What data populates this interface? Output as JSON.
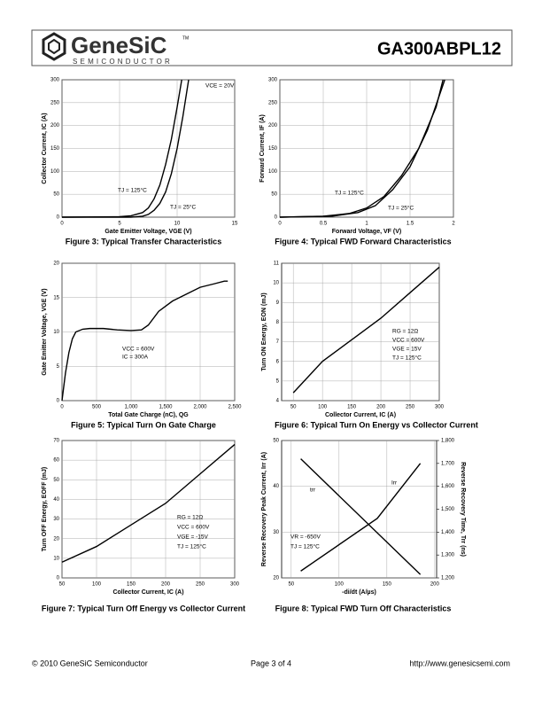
{
  "header": {
    "logo": "GeneSiC",
    "trademark": "TM",
    "tagline": "SEMICONDUCTOR",
    "part_number": "GA300ABPL12"
  },
  "chart_data": [
    {
      "type": "line",
      "caption": "Figure 3: Typical Transfer Characteristics",
      "x_label": "Gate Emitter Voltage, VGE (V)",
      "y_label": "Collector Current, IC (A)",
      "xlim": [
        0,
        15
      ],
      "xticks": [
        0,
        5,
        10,
        15
      ],
      "ylim": [
        0,
        300
      ],
      "yticks": [
        0,
        50,
        100,
        150,
        200,
        250,
        300
      ],
      "grid": true,
      "annotations": [
        "VCE = 20V",
        "TJ = 125°C",
        "TJ = 25°C"
      ],
      "series": [
        {
          "color": "#000000",
          "x": [
            0,
            5,
            6,
            7,
            7.5,
            8,
            8.5,
            9,
            9.5,
            10,
            10.4
          ],
          "values": [
            0,
            1,
            3,
            10,
            20,
            40,
            70,
            115,
            170,
            240,
            300
          ]
        },
        {
          "color": "#000000",
          "x": [
            0,
            6,
            7,
            7.5,
            8,
            8.5,
            9,
            9.5,
            10,
            10.5,
            11
          ],
          "values": [
            0,
            0,
            2,
            6,
            15,
            30,
            55,
            95,
            150,
            220,
            300
          ]
        }
      ]
    },
    {
      "type": "line",
      "caption": "Figure 4: Typical FWD Forward Characteristics",
      "x_label": "Forward Voltage, VF (V)",
      "y_label": "Forward Current, IF (A)",
      "xlim": [
        0,
        2
      ],
      "xticks": [
        0,
        0.5,
        1,
        1.5,
        2
      ],
      "ylim": [
        0,
        300
      ],
      "yticks": [
        0,
        50,
        100,
        150,
        200,
        250,
        300
      ],
      "grid": true,
      "annotations": [
        "TJ = 125°C",
        "TJ = 25°C"
      ],
      "series": [
        {
          "color": "#000000",
          "x": [
            0,
            0.5,
            0.8,
            1,
            1.2,
            1.4,
            1.6,
            1.8,
            1.88
          ],
          "values": [
            0,
            2,
            8,
            20,
            45,
            90,
            150,
            240,
            300
          ]
        },
        {
          "color": "#000000",
          "x": [
            0,
            0.6,
            0.9,
            1.1,
            1.3,
            1.5,
            1.7,
            1.9
          ],
          "values": [
            0,
            2,
            10,
            25,
            60,
            110,
            190,
            300
          ]
        }
      ]
    },
    {
      "type": "line",
      "caption": "Figure 5: Typical Turn On Gate Charge",
      "x_label": "Total Gate Charge (nC), QG",
      "y_label": "Gate Emitter Voltage, VGE (V)",
      "xlim": [
        0,
        2500
      ],
      "xticks": [
        0,
        500,
        {
          "value": 1000,
          "label": "1,000"
        },
        {
          "value": 1500,
          "label": "1,500"
        },
        {
          "value": 2000,
          "label": "2,000"
        },
        {
          "value": 2500,
          "label": "2,500"
        }
      ],
      "ylim": [
        0,
        20
      ],
      "yticks": [
        0,
        5,
        10,
        15,
        20
      ],
      "grid": true,
      "annotations": [
        "VCC = 600V",
        "IC = 300A"
      ],
      "series": [
        {
          "color": "#000000",
          "x": [
            0,
            50,
            100,
            150,
            200,
            300,
            400,
            600,
            800,
            1000,
            1150,
            1250,
            1400,
            1600,
            1800,
            2000,
            2200,
            2350,
            2400
          ],
          "values": [
            0,
            4,
            7,
            9,
            10,
            10.4,
            10.5,
            10.5,
            10.3,
            10.2,
            10.3,
            11,
            13,
            14.5,
            15.5,
            16.5,
            17,
            17.4,
            17.4
          ]
        }
      ]
    },
    {
      "type": "line",
      "caption": "Figure 6: Typical Turn On Energy vs Collector Current",
      "x_label": "Collector Current, IC (A)",
      "y_label": "Turn ON Energy, EON (mJ)",
      "xlim": [
        30,
        300
      ],
      "xticks": [
        50,
        100,
        150,
        200,
        250,
        300
      ],
      "ylim": [
        4,
        11
      ],
      "yticks": [
        4,
        5,
        6,
        7,
        8,
        9,
        10,
        11
      ],
      "grid": true,
      "annotations": [
        "RG = 12Ω",
        "VCC = 600V",
        "VGE = 15V",
        "TJ = 125°C"
      ],
      "series": [
        {
          "color": "#000000",
          "x": [
            50,
            100,
            150,
            200,
            250,
            300
          ],
          "values": [
            4.4,
            6,
            7.1,
            8.2,
            9.5,
            10.8
          ]
        }
      ]
    },
    {
      "type": "line",
      "caption": "Figure 7: Typical Turn Off Energy vs Collector Current",
      "x_label": "Collector Current, IC (A)",
      "y_label": "Turn OFF Energy, EOFF (mJ)",
      "xlim": [
        50,
        300
      ],
      "xticks": [
        50,
        100,
        150,
        200,
        250,
        300
      ],
      "ylim": [
        0,
        70
      ],
      "yticks": [
        0,
        10,
        20,
        30,
        40,
        50,
        60,
        70
      ],
      "grid": true,
      "annotations": [
        "RG = 12Ω",
        "VCC = 600V",
        "VGE = -15V",
        "TJ = 125°C"
      ],
      "series": [
        {
          "color": "#000000",
          "x": [
            50,
            100,
            150,
            200,
            250,
            300
          ],
          "values": [
            8,
            16,
            27,
            38,
            53,
            68
          ]
        }
      ]
    },
    {
      "type": "line",
      "caption": "Figure 8: Typical FWD Turn Off Characteristics",
      "x_label": "-di/dt (A/µs)",
      "y_label": "Reverse Recovery Peak Current, Irr (A)",
      "y2_label": "Reverse Recovery Time, Trr (ns)",
      "xlim": [
        40,
        202
      ],
      "xticks": [
        50,
        100,
        150,
        200
      ],
      "ylim": [
        20,
        50
      ],
      "yticks": [
        20,
        30,
        40,
        50
      ],
      "y2lim": [
        1200,
        1800
      ],
      "y2ticks": [
        {
          "value": 1200,
          "label": "1,200"
        },
        {
          "value": 1300,
          "label": "1,300"
        },
        {
          "value": 1400,
          "label": "1,400"
        },
        {
          "value": 1500,
          "label": "1,500"
        },
        {
          "value": 1600,
          "label": "1,600"
        },
        {
          "value": 1700,
          "label": "1,700"
        },
        {
          "value": 1800,
          "label": "1,800"
        }
      ],
      "grid": true,
      "annotations": [
        "Irr",
        "trr",
        "VR = -650V",
        "TJ = 125°C"
      ],
      "series": [
        {
          "color": "#000000",
          "x": [
            60,
            140,
            185
          ],
          "values": [
            21.5,
            33,
            45
          ]
        },
        {
          "color": "#000000",
          "axis": "y2",
          "x": [
            60,
            185
          ],
          "values": [
            1720,
            1215
          ]
        }
      ]
    }
  ],
  "footer": {
    "copyright": "© 2010 GeneSiC Semiconductor",
    "page": "Page 3 of 4",
    "url": "http://www.genesicsemi.com"
  }
}
